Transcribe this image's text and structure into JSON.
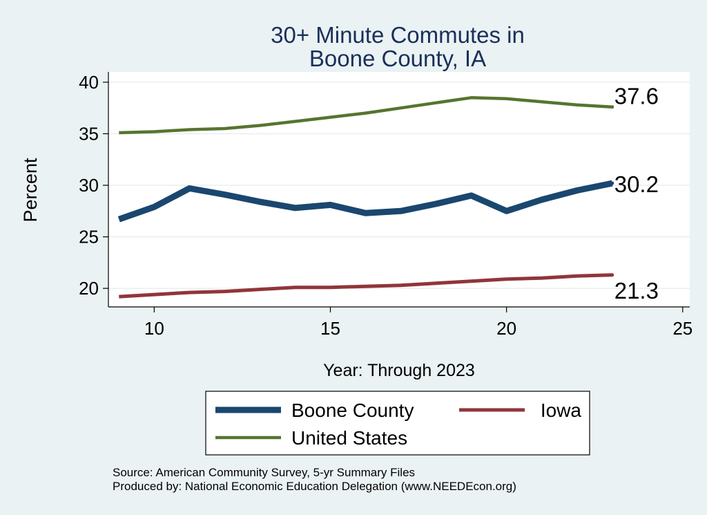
{
  "chart_data": {
    "type": "line",
    "title_lines": [
      "30+ Minute Commutes in",
      "Boone County, IA"
    ],
    "xlabel": "Year: Through 2023",
    "ylabel": "Percent",
    "xlim": [
      8.7,
      25.2
    ],
    "ylim": [
      18.2,
      41
    ],
    "xticks": [
      10,
      15,
      20,
      25
    ],
    "yticks": [
      20,
      25,
      30,
      35,
      40
    ],
    "grid": true,
    "series": [
      {
        "name": "Boone County",
        "key": "boone",
        "color": "#1a476f",
        "x": [
          9,
          10,
          11,
          12,
          13,
          14,
          15,
          16,
          17,
          18,
          19,
          20,
          21,
          22,
          23
        ],
        "values": [
          26.7,
          27.9,
          29.7,
          29.1,
          28.4,
          27.8,
          28.1,
          27.3,
          27.5,
          28.2,
          29.0,
          27.5,
          28.6,
          29.5,
          30.2
        ],
        "end_label": "30.2"
      },
      {
        "name": "Iowa",
        "key": "iowa",
        "color": "#90353b",
        "x": [
          9,
          10,
          11,
          12,
          13,
          14,
          15,
          16,
          17,
          18,
          19,
          20,
          21,
          22,
          23
        ],
        "values": [
          19.2,
          19.4,
          19.6,
          19.7,
          19.9,
          20.1,
          20.1,
          20.2,
          20.3,
          20.5,
          20.7,
          20.9,
          21.0,
          21.2,
          21.3
        ],
        "end_label": "21.3"
      },
      {
        "name": "United States",
        "key": "us",
        "color": "#55752f",
        "x": [
          9,
          10,
          11,
          12,
          13,
          14,
          15,
          16,
          17,
          18,
          19,
          20,
          21,
          22,
          23
        ],
        "values": [
          35.1,
          35.2,
          35.4,
          35.5,
          35.8,
          36.2,
          36.6,
          37.0,
          37.5,
          38.0,
          38.5,
          38.4,
          38.1,
          37.8,
          37.6
        ],
        "end_label": "37.6"
      }
    ],
    "legend": {
      "position": "bottom",
      "items": [
        "Boone County",
        "Iowa",
        "United States"
      ]
    },
    "notes": [
      "Source: American Community Survey, 5-yr Summary Files",
      "Produced by: National Economic Education Delegation (www.NEEDEcon.org)"
    ]
  }
}
